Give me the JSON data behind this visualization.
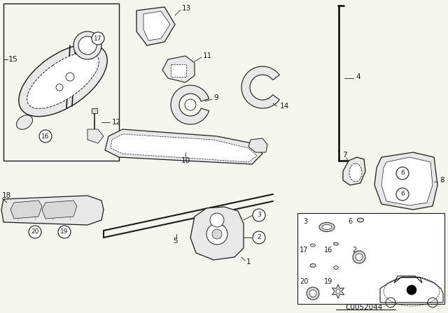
{
  "bg_color": "#f5f5f0",
  "line_color": "#1a1a1a",
  "fig_width": 6.4,
  "fig_height": 4.48,
  "dpi": 100,
  "catalog_number": "C0052044",
  "gray_fill": "#d8d8d8",
  "light_fill": "#e8e8e8",
  "white_fill": "#ffffff"
}
